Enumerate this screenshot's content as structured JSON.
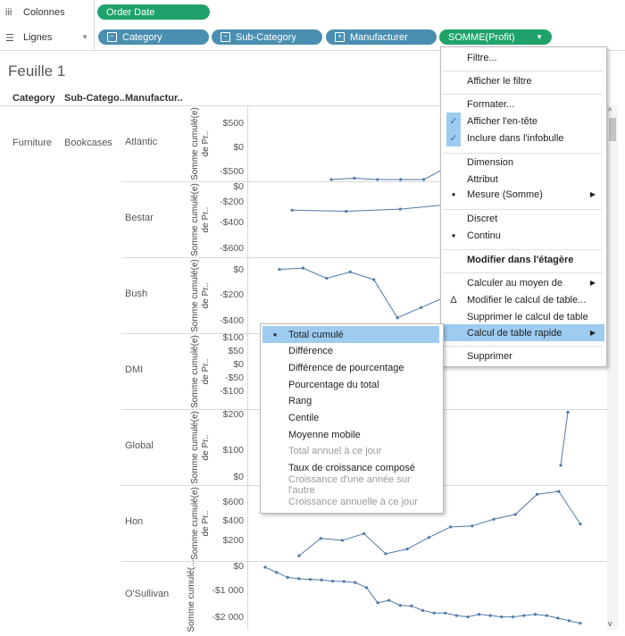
{
  "shelves": {
    "columns": {
      "label": "Colonnes",
      "icon": "columns-icon",
      "pill": "Order Date"
    },
    "rows": {
      "label": "Lignes",
      "icon": "rows-icon",
      "pills": [
        "Category",
        "Sub-Category",
        "Manufacturer"
      ],
      "measure": "SOMME(Profit)"
    }
  },
  "sheet_title": "Feuille 1",
  "headers": {
    "category": "Category",
    "subcategory": "Sub-Catego..",
    "manufacturer": "Manufactur.."
  },
  "category": "Furniture",
  "subcategory": "Bookcases",
  "axis_title": "Somme cumulé(e) de Pr..",
  "axis_title_last": "Somme cumulé(...",
  "panes": [
    {
      "name": "Atlantic",
      "ticks": [
        "$500",
        "$0",
        "-$500"
      ]
    },
    {
      "name": "Bestar",
      "ticks": [
        "$0",
        "-$200",
        "-$400",
        "-$600"
      ]
    },
    {
      "name": "Bush",
      "ticks": [
        "$0",
        "-$200",
        "-$400"
      ]
    },
    {
      "name": "DMI",
      "ticks": [
        "$100",
        "$50",
        "$0",
        "-$50",
        "-$100"
      ]
    },
    {
      "name": "Global",
      "ticks": [
        "$200",
        "$100",
        "$0"
      ]
    },
    {
      "name": "Hon",
      "ticks": [
        "$600",
        "$400",
        "$200"
      ]
    },
    {
      "name": "O'Sullivan",
      "ticks": [
        "$0",
        "-$1 000",
        "-$2 000"
      ]
    }
  ],
  "context_menu": {
    "items": [
      {
        "label": "Filtre..."
      },
      {
        "label": "Afficher le filtre"
      },
      {
        "label": "Formater..."
      },
      {
        "label": "Afficher l'en-tête",
        "mark": "✓"
      },
      {
        "label": "Inclure dans l'infobulle",
        "mark": "✓"
      },
      {
        "label": "Dimension"
      },
      {
        "label": "Attribut"
      },
      {
        "label": "Mesure (Somme)",
        "mark": "●",
        "submenu": true
      },
      {
        "label": "Discret"
      },
      {
        "label": "Continu",
        "mark": "●"
      },
      {
        "label": "Modifier dans l'étagère"
      },
      {
        "label": "Calculer au moyen de",
        "submenu": true
      },
      {
        "label": "Modifier le calcul de table...",
        "mark": "Δ"
      },
      {
        "label": "Supprimer le calcul de table"
      },
      {
        "label": "Calcul de table rapide",
        "submenu": true
      },
      {
        "label": "Supprimer"
      }
    ]
  },
  "submenu": {
    "items": [
      {
        "label": "Total cumulé",
        "mark": "●"
      },
      {
        "label": "Différence"
      },
      {
        "label": "Différence de pourcentage"
      },
      {
        "label": "Pourcentage du total"
      },
      {
        "label": "Rang"
      },
      {
        "label": "Centile"
      },
      {
        "label": "Moyenne mobile"
      },
      {
        "label": "Total annuel à ce jour"
      },
      {
        "label": "Taux de croissance composé"
      },
      {
        "label": "Croissance d'une année sur l'autre"
      },
      {
        "label": "Croissance annuelle à ce jour"
      }
    ]
  },
  "chart_data": {
    "type": "line",
    "series": [
      {
        "name": "Atlantic",
        "values": [
          -250,
          -60,
          -110,
          -100,
          -180,
          50,
          210,
          180,
          -550,
          -150,
          -300
        ]
      },
      {
        "name": "Bestar",
        "values": [
          -220,
          -230,
          -210,
          -160,
          -140,
          -120
        ]
      },
      {
        "name": "Bush",
        "values": [
          10,
          20,
          -60,
          -10,
          -70,
          -370,
          -290,
          -210,
          -200,
          -360,
          -470,
          -380,
          -460
        ]
      },
      {
        "name": "DMI",
        "values": [
          -20,
          -60
        ]
      },
      {
        "name": "Global",
        "values": [
          40,
          210
        ]
      },
      {
        "name": "Hon",
        "values": [
          50,
          230,
          210,
          280,
          70,
          120,
          240,
          350,
          360,
          430,
          480,
          690,
          720,
          380
        ]
      },
      {
        "name": "O'Sullivan",
        "values": [
          0,
          -200,
          -400,
          -450,
          -480,
          -500,
          -550,
          -560,
          -600,
          -800,
          -1400,
          -1300,
          -1500,
          -1520,
          -1700,
          -1800,
          -1800,
          -1900,
          -1950,
          -1850,
          -1900,
          -1950,
          -1950,
          -1900,
          -1850,
          -1900,
          -2000,
          -2100,
          -2200
        ]
      }
    ]
  }
}
